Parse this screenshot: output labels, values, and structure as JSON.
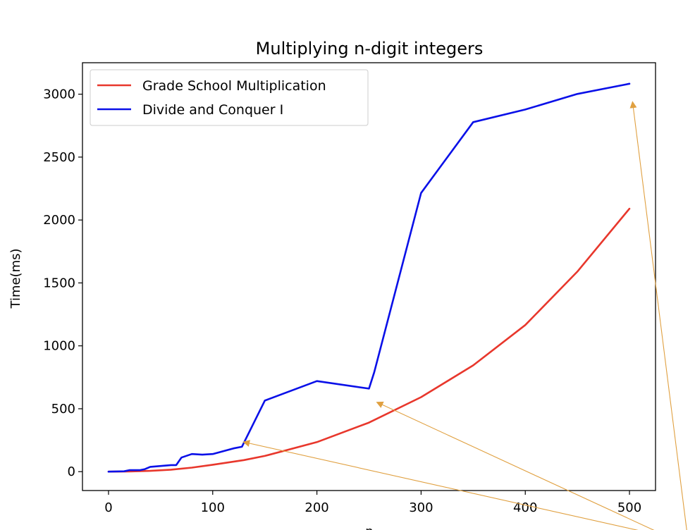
{
  "chart_data": {
    "type": "line",
    "title": "Multiplying n-digit integers",
    "xlabel": "n",
    "ylabel": "Time(ms)",
    "xlim": [
      -25,
      525
    ],
    "ylim": [
      -150,
      3250
    ],
    "xticks": [
      0,
      100,
      200,
      300,
      400,
      500
    ],
    "yticks": [
      0,
      500,
      1000,
      1500,
      2000,
      2500,
      3000
    ],
    "grid": false,
    "legend_position": "top-left",
    "series": [
      {
        "name": "Grade School Multiplication",
        "color": "#e8372c",
        "x": [
          0,
          20,
          40,
          60,
          80,
          100,
          130,
          150,
          200,
          250,
          300,
          350,
          400,
          450,
          500
        ],
        "y": [
          0,
          2,
          6,
          16,
          32,
          55,
          92,
          125,
          235,
          390,
          592,
          845,
          1165,
          1590,
          2090
        ]
      },
      {
        "name": "Divide and Conquer I",
        "color": "#0a10e8",
        "x": [
          0,
          15,
          20,
          30,
          35,
          40,
          50,
          60,
          65,
          70,
          80,
          90,
          100,
          120,
          128,
          150,
          200,
          250,
          255,
          300,
          350,
          400,
          450,
          500
        ],
        "y": [
          0,
          3,
          12,
          12,
          20,
          38,
          45,
          52,
          52,
          112,
          140,
          135,
          140,
          185,
          198,
          565,
          720,
          660,
          790,
          2215,
          2778,
          2878,
          3002,
          3083
        ]
      }
    ],
    "annotation_arrows": {
      "color": "#e0a040",
      "pointer_targets": [
        {
          "x": 130,
          "y": 235
        },
        {
          "x": 258,
          "y": 550
        },
        {
          "x": 503,
          "y": 2935
        }
      ]
    }
  }
}
